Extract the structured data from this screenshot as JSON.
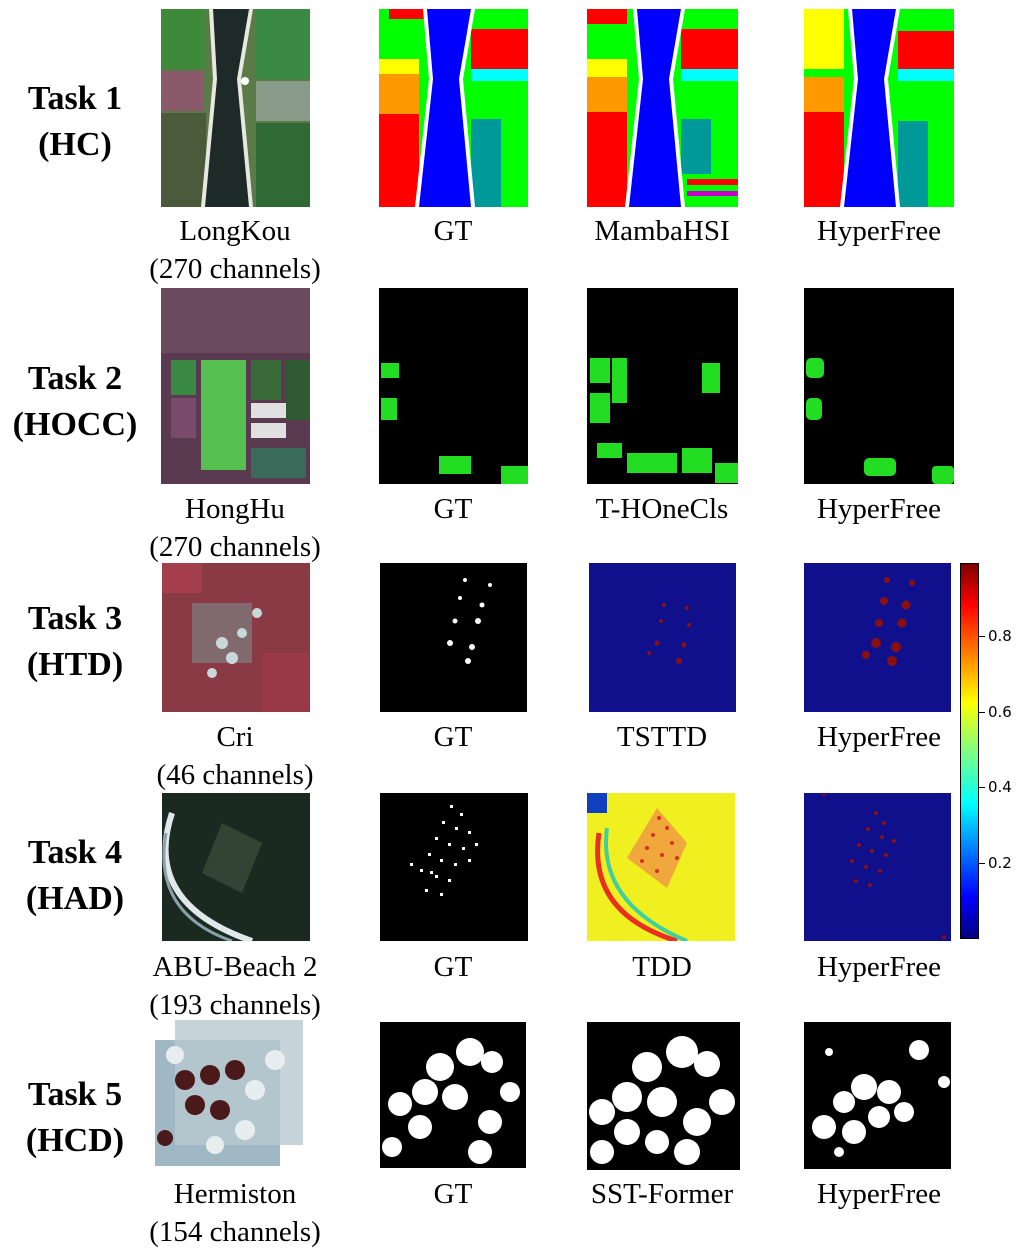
{
  "rows": [
    {
      "task": "Task 1",
      "abbr": "(HC)",
      "dataset": "LongKou",
      "channels": "(270 channels)",
      "gt": "GT",
      "baseline": "MambaHSI",
      "ours": "HyperFree"
    },
    {
      "task": "Task 2",
      "abbr": "(HOCC)",
      "dataset": "HongHu",
      "channels": "(270 channels)",
      "gt": "GT",
      "baseline": "T-HOneCls",
      "ours": "HyperFree"
    },
    {
      "task": "Task 3",
      "abbr": "(HTD)",
      "dataset": "Cri",
      "channels": "(46 channels)",
      "gt": "GT",
      "baseline": "TSTTD",
      "ours": "HyperFree"
    },
    {
      "task": "Task 4",
      "abbr": "(HAD)",
      "dataset": "ABU-Beach 2",
      "channels": "(193 channels)",
      "gt": "GT",
      "baseline": "TDD",
      "ours": "HyperFree"
    },
    {
      "task": "Task 5",
      "abbr": "(HCD)",
      "dataset": "Hermiston",
      "channels": "(154 channels)",
      "gt": "GT",
      "baseline": "SST-Former",
      "ours": "HyperFree"
    }
  ],
  "colorbar": {
    "ticks": [
      "0.2",
      "0.4",
      "0.6",
      "0.8"
    ],
    "colormap": "jet"
  }
}
